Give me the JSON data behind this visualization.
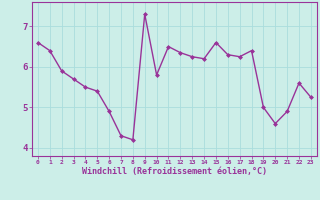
{
  "x": [
    0,
    1,
    2,
    3,
    4,
    5,
    6,
    7,
    8,
    9,
    10,
    11,
    12,
    13,
    14,
    15,
    16,
    17,
    18,
    19,
    20,
    21,
    22,
    23
  ],
  "y": [
    6.6,
    6.4,
    5.9,
    5.7,
    5.5,
    5.4,
    4.9,
    4.3,
    4.2,
    7.3,
    5.8,
    6.5,
    6.35,
    6.25,
    6.2,
    6.6,
    6.3,
    6.25,
    6.4,
    5.0,
    4.6,
    4.9,
    5.6,
    5.25
  ],
  "line_color": "#993399",
  "marker": "D",
  "marker_size": 2,
  "bg_color": "#cceee8",
  "grid_color": "#aadddd",
  "xlabel": "Windchill (Refroidissement éolien,°C)",
  "tick_color": "#993399",
  "ylim": [
    3.8,
    7.6
  ],
  "xlim": [
    -0.5,
    23.5
  ],
  "yticks": [
    4,
    5,
    6,
    7
  ],
  "xticks": [
    0,
    1,
    2,
    3,
    4,
    5,
    6,
    7,
    8,
    9,
    10,
    11,
    12,
    13,
    14,
    15,
    16,
    17,
    18,
    19,
    20,
    21,
    22,
    23
  ],
  "line_width": 1.0
}
